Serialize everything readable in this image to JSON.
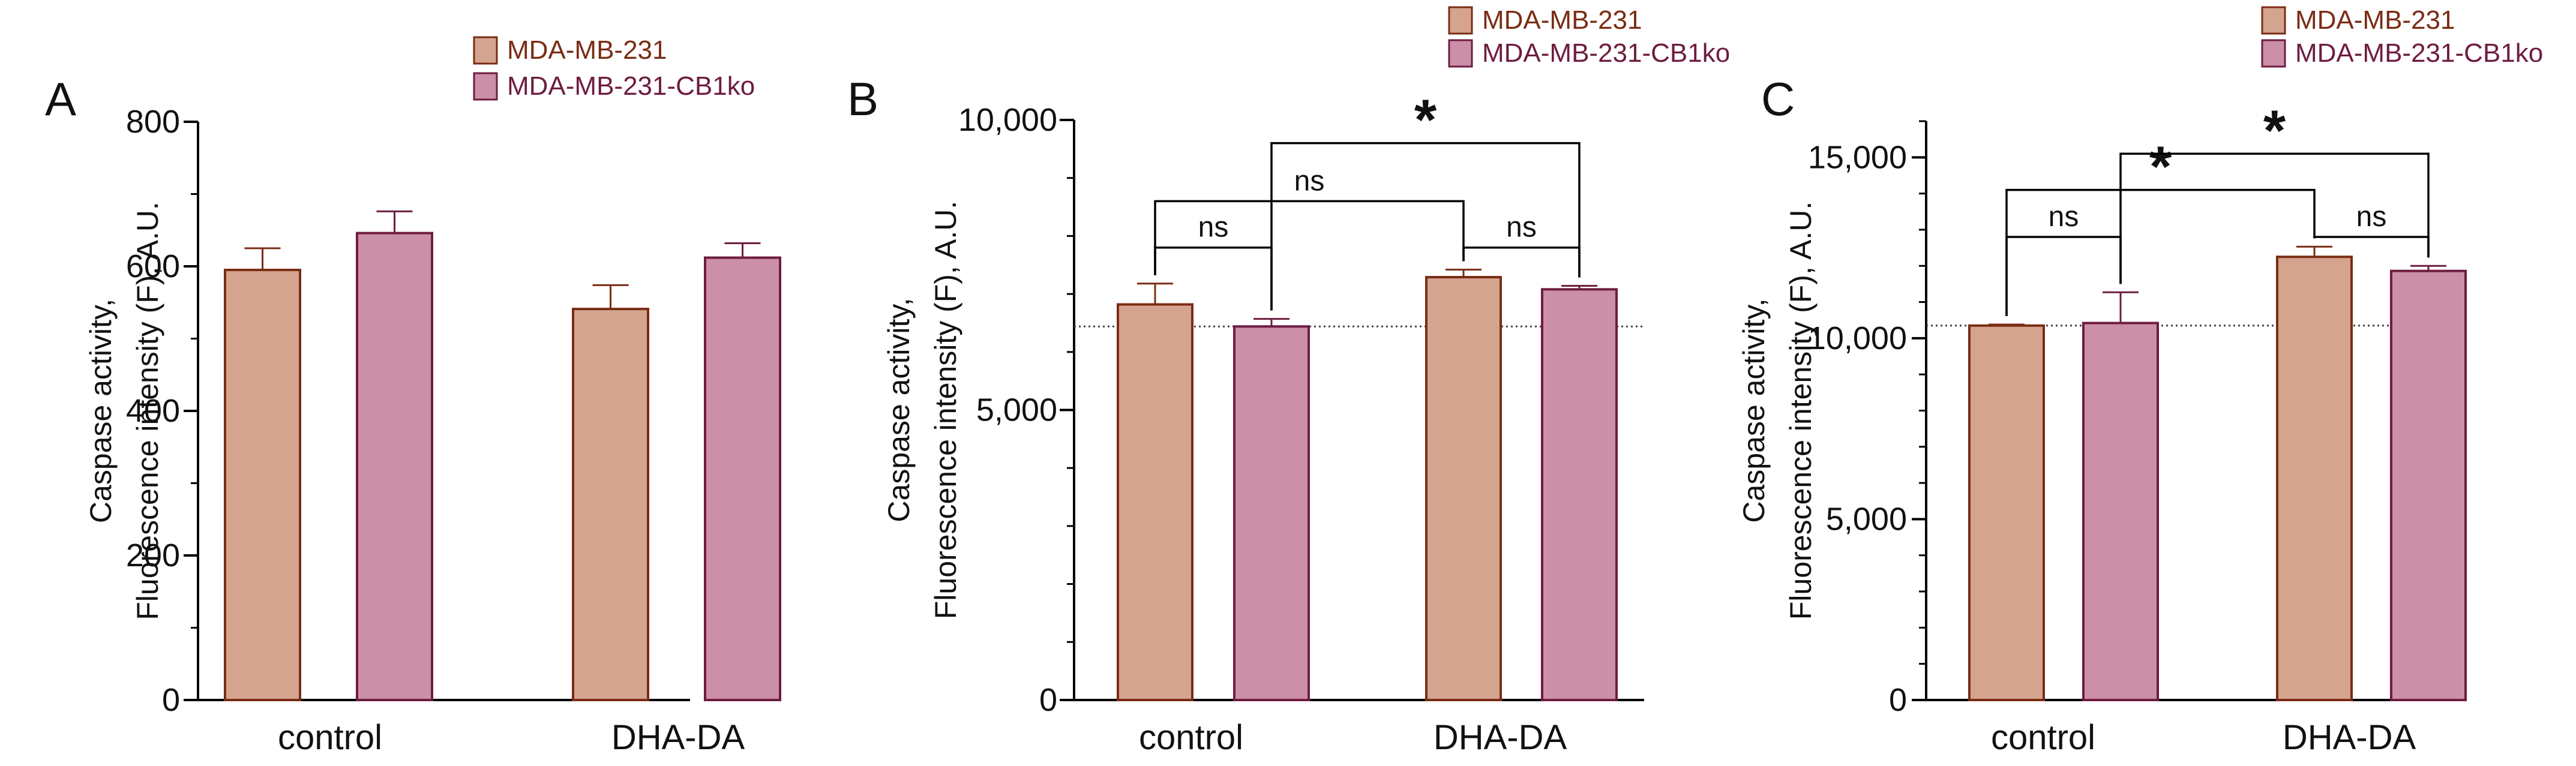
{
  "chart_data": [
    {
      "panel": "A",
      "type": "bar",
      "categories": [
        "control",
        "DHA-DA"
      ],
      "series": [
        {
          "name": "MDA-MB-231",
          "values": [
            595,
            541
          ],
          "errors": [
            30,
            33
          ]
        },
        {
          "name": "MDA-MB-231-CB1ko",
          "values": [
            646,
            612
          ],
          "errors": [
            30,
            20
          ]
        }
      ],
      "ylabel_line1": "Caspase activity,",
      "ylabel_line2": "Fluorescence intensity (F), A.U.",
      "ylim": [
        0,
        800
      ],
      "yticks": [
        0,
        200,
        400,
        600,
        800
      ],
      "ytick_labels": [
        "0",
        "200",
        "400",
        "600",
        "800"
      ],
      "minor_step": 100,
      "baseline": null,
      "brackets": []
    },
    {
      "panel": "B",
      "type": "bar",
      "categories": [
        "control",
        "DHA-DA"
      ],
      "series": [
        {
          "name": "MDA-MB-231",
          "values": [
            6820,
            7290
          ],
          "errors": [
            360,
            130
          ]
        },
        {
          "name": "MDA-MB-231-CB1ko",
          "values": [
            6440,
            7080
          ],
          "errors": [
            130,
            60
          ]
        }
      ],
      "ylabel_line1": "Caspase activity,",
      "ylabel_line2": "Fluorescence intensity (F), A.U.",
      "ylim": [
        0,
        10000
      ],
      "yticks": [
        0,
        5000,
        10000
      ],
      "ytick_labels": [
        "0",
        "5,000",
        "10,000"
      ],
      "minor_step": 1000,
      "baseline": 6440,
      "brackets": [
        {
          "from": [
            0,
            0
          ],
          "to": [
            0,
            1
          ],
          "level": 7800,
          "label": "ns"
        },
        {
          "from": [
            1,
            0
          ],
          "to": [
            1,
            1
          ],
          "level": 7800,
          "label": "ns"
        },
        {
          "from": [
            0,
            0
          ],
          "to": [
            1,
            0
          ],
          "level": 8600,
          "label": "ns"
        },
        {
          "from": [
            0,
            1
          ],
          "to": [
            1,
            1
          ],
          "level": 9600,
          "label": "*"
        }
      ]
    },
    {
      "panel": "C",
      "type": "bar",
      "categories": [
        "control",
        "DHA-DA"
      ],
      "series": [
        {
          "name": "MDA-MB-231",
          "values": [
            10350,
            12250
          ],
          "errors": [
            30,
            280
          ]
        },
        {
          "name": "MDA-MB-231-CB1ko",
          "values": [
            10420,
            11860
          ],
          "errors": [
            850,
            140
          ]
        }
      ],
      "ylabel_line1": "Caspase activity,",
      "ylabel_line2": "Fluorescence intensity (F), A.U.",
      "ylim": [
        0,
        16000
      ],
      "yticks": [
        0,
        5000,
        10000,
        15000
      ],
      "ytick_labels": [
        "0",
        "5,000",
        "10,000",
        "15,000"
      ],
      "minor_step": 1000,
      "baseline": 10350,
      "brackets": [
        {
          "from": [
            0,
            0
          ],
          "to": [
            0,
            1
          ],
          "level": 12800,
          "label": "ns"
        },
        {
          "from": [
            1,
            0
          ],
          "to": [
            1,
            1
          ],
          "level": 12800,
          "label": "ns"
        },
        {
          "from": [
            0,
            0
          ],
          "to": [
            1,
            0
          ],
          "level": 14100,
          "label": "*"
        },
        {
          "from": [
            0,
            1
          ],
          "to": [
            1,
            1
          ],
          "level": 15100,
          "label": "*"
        }
      ]
    }
  ],
  "colors": {
    "series1_fill": "#d4a48f",
    "series1_stroke": "#7a2c14",
    "series2_fill": "#cc8fa8",
    "series2_stroke": "#6e1c40",
    "axis": "#000000",
    "baseline": "#444444"
  }
}
